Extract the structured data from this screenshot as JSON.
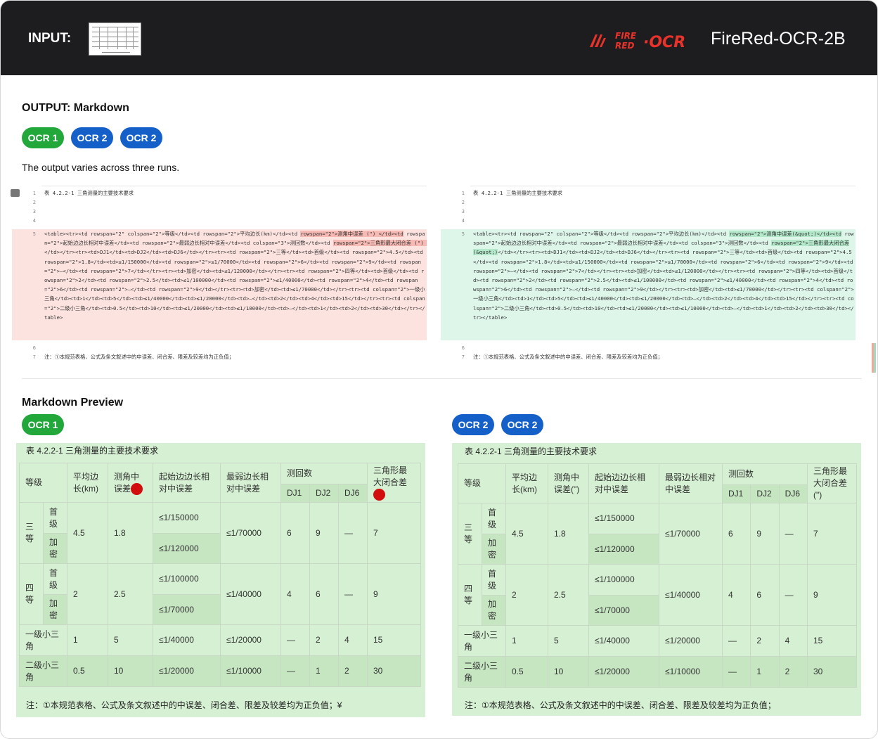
{
  "header": {
    "input_label": "INPUT:",
    "brand_name": "FireRed-OCR-2B",
    "logo_text": "FIRE RED ·OCR"
  },
  "output": {
    "title": "OUTPUT: Markdown",
    "runs": [
      "OCR 1",
      "OCR 2",
      "OCR 2"
    ],
    "note": "The output varies across three runs."
  },
  "diff_left": {
    "line_numbers": [
      "1",
      "2",
      "3",
      "4",
      "5",
      "6",
      "7"
    ],
    "line1": "表 4.2.2-1 三角测量的主要技术要求",
    "line5_a": "<table><tr><td rowspan=\"2\" colspan=\"2\">等级</td><td rowspan=\"2\">平均边长(km)</td><td ",
    "line5_mark1": "rowspan=\"2\">测角中误差 (\") </td><td",
    "line5_b": " rowspan=\"2\">起始边边长相对中误差</td><td rowspan=\"2\">最弱边长相对中误差</td><td colspan=\"3\">测回数</td><td ",
    "line5_mark2": "rowspan=\"2\">三角形最大闭合差 (\") ",
    "line5_c": "</td></tr><tr><td>DJ1</td><td>DJ2</td><td>DJ6</td></tr><tr><td rowspan=\"2\">三等</td><td>首级</td><td rowspan=\"2\">4.5</td><td rowspan=\"2\">1.8</td><td>≤1/150000</td><td rowspan=\"2\">≤1/70000</td><td rowspan=\"2\">6</td><td rowspan=\"2\">9</td><td rowspan=\"2\">—</td><td rowspan=\"2\">7</td></tr><tr><td>加密</td><td>≤1/120000</td></tr><tr><td rowspan=\"2\">四等</td><td>首级</td><td rowspan=\"2\">2</td><td rowspan=\"2\">2.5</td><td>≤1/100000</td><td rowspan=\"2\">≤1/40000</td><td rowspan=\"2\">4</td><td rowspan=\"2\">6</td><td rowspan=\"2\">—</td><td rowspan=\"2\">9</td></tr><tr><td>加密</td><td>≤1/70000</td></tr><tr><td colspan=\"2\">一级小三角</td><td>1</td><td>5</td><td>≤1/40000</td><td>≤1/20000</td><td>—</td><td>2</td><td>4</td><td>15</td></tr><tr><td colspan=\"2\">二级小三角</td><td>0.5</td><td>10</td><td>≤1/20000</td><td>≤1/10000</td><td>—</td><td>1</td><td>2</td><td>30</td></tr></table>",
    "line7": "注：①本规范表格、公式及条文叙述中的中误差、闭合差、限差及较差均为正负值；"
  },
  "diff_right": {
    "line_numbers": [
      "1",
      "2",
      "3",
      "4",
      "5",
      "6",
      "7"
    ],
    "line1": "表 4.2.2-1 三角测量的主要技术要求",
    "line5_a": "<table><tr><td rowspan=\"2\" colspan=\"2\">等级</td><td rowspan=\"2\">平均边长(km)</td><td ",
    "line5_mark1": "rowspan=\"2\">测角中误差(&quot;)</td><td",
    "line5_b": " rowspan=\"2\">起始边边长相对中误差</td><td rowspan=\"2\">最弱边长相对中误差</td><td colspan=\"3\">测回数</td><td ",
    "line5_mark2": "rowspan=\"2\">三角形最大闭合差(&quot;)",
    "line5_c": "</td></tr><tr><td>DJ1</td><td>DJ2</td><td>DJ6</td></tr><tr><td rowspan=\"2\">三等</td><td>首级</td><td rowspan=\"2\">4.5</td><td rowspan=\"2\">1.8</td><td>≤1/150000</td><td rowspan=\"2\">≤1/70000</td><td rowspan=\"2\">6</td><td rowspan=\"2\">9</td><td rowspan=\"2\">—</td><td rowspan=\"2\">7</td></tr><tr><td>加密</td><td>≤1/120000</td></tr><tr><td rowspan=\"2\">四等</td><td>首级</td><td rowspan=\"2\">2</td><td rowspan=\"2\">2.5</td><td>≤1/100000</td><td rowspan=\"2\">≤1/40000</td><td rowspan=\"2\">4</td><td rowspan=\"2\">6</td><td rowspan=\"2\">—</td><td rowspan=\"2\">9</td></tr><tr><td>加密</td><td>≤1/70000</td></tr><tr><td colspan=\"2\">一级小三角</td><td>1</td><td>5</td><td>≤1/40000</td><td>≤1/20000</td><td>—</td><td>2</td><td>4</td><td>15</td></tr><tr><td colspan=\"2\">二级小三角</td><td>0.5</td><td>10</td><td>≤1/20000</td><td>≤1/10000</td><td>—</td><td>1</td><td>2</td><td>30</td></tr></table>",
    "line7": "注：①本规范表格、公式及条文叙述中的中误差、闭合差、限差及较差均为正负值；"
  },
  "preview": {
    "title": "Markdown Preview",
    "left_run": "OCR 1",
    "right_runs": [
      "OCR 2",
      "OCR 2"
    ],
    "caption": "表 4.2.2-1 三角测量的主要技术要求",
    "left_foot": "注：①本规范表格、公式及条文叙述中的中误差、闭合差、限差及较差均为正负值；¥",
    "right_foot": "注：①本规范表格、公式及条文叙述中的中误差、闭合差、限差及较差均为正负值；",
    "headers": {
      "grade": "等级",
      "avg_len_left": "平均边长(km)",
      "angle_err_left": "测角中误差",
      "start_err": "起始边边长相对中误差",
      "weak_err": "最弱边长相对中误差",
      "rounds": "测回数",
      "closure_left": "三角形最大闭合差",
      "avg_len_right": "平均边长(km)",
      "angle_err_right": "测角中误差(\")",
      "closure_right": "三角形最大闭合差(\")",
      "dj1": "DJ1",
      "dj2": "DJ2",
      "dj6": "DJ6"
    },
    "rows": {
      "third": "三等",
      "fourth": "四等",
      "first_level": "首级",
      "dense": "加密",
      "class1": "一级小三角",
      "class2": "二级小三角",
      "r3_avg": "4.5",
      "r3_ang": "1.8",
      "r3_s1": "≤1/150000",
      "r3_s2": "≤1/120000",
      "r3_weak": "≤1/70000",
      "r3_dj1": "6",
      "r3_dj2": "9",
      "r3_dj6": "—",
      "r3_cl": "7",
      "r4_avg": "2",
      "r4_ang": "2.5",
      "r4_s1": "≤1/100000",
      "r4_s2": "≤1/70000",
      "r4_weak": "≤1/40000",
      "r4_dj1": "4",
      "r4_dj2": "6",
      "r4_dj6": "—",
      "r4_cl": "9",
      "c1_avg": "1",
      "c1_ang": "5",
      "c1_s": "≤1/40000",
      "c1_weak": "≤1/20000",
      "c1_dj1": "—",
      "c1_dj2": "2",
      "c1_dj6": "4",
      "c1_cl": "15",
      "c2_avg": "0.5",
      "c2_ang": "10",
      "c2_s": "≤1/20000",
      "c2_weak": "≤1/10000",
      "c2_dj1": "—",
      "c2_dj2": "1",
      "c2_dj6": "2",
      "c2_cl": "30"
    }
  },
  "colors": {
    "topbar": "#1d1d1f",
    "green_pill": "#22a83a",
    "blue_pill": "#1460c8",
    "diff_removed": "#fde3e0",
    "diff_added": "#def5ea",
    "preview_bg": "#d5f0d2",
    "logo_red": "#e8322a",
    "error_marker": "#d10d0d"
  },
  "icons": [
    "comment-icon",
    "error-marker-icon"
  ]
}
